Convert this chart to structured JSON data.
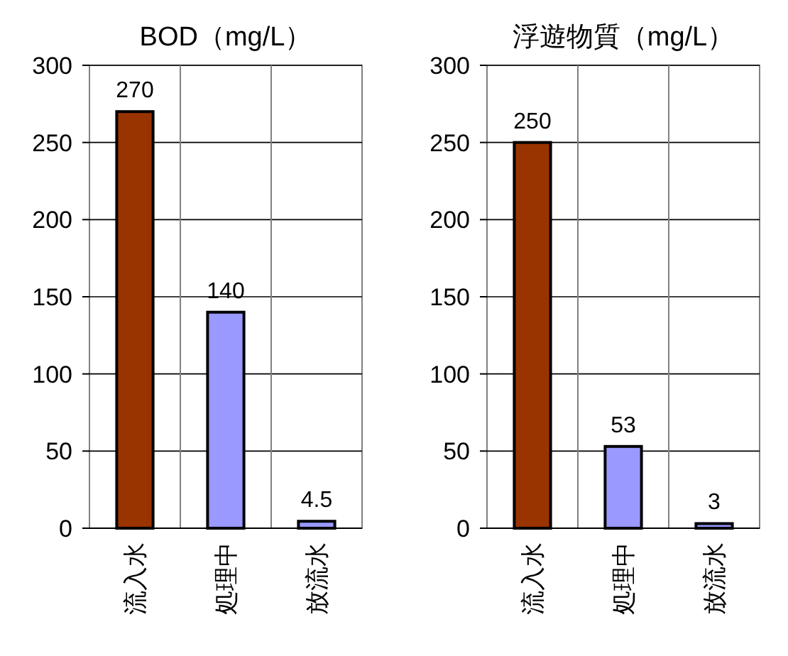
{
  "chart_data": [
    {
      "type": "bar",
      "title": "BOD（mg/L）",
      "categories": [
        "流入水",
        "処理中",
        "放流水"
      ],
      "values": [
        270,
        140,
        4.5
      ],
      "colors": [
        "#993300",
        "#9999ff",
        "#9999ff"
      ],
      "ylim": [
        0,
        300
      ],
      "yticks": [
        0,
        50,
        100,
        150,
        200,
        250,
        300
      ],
      "grid": true,
      "data_labels": true
    },
    {
      "type": "bar",
      "title": "浮遊物質（mg/L）",
      "categories": [
        "流入水",
        "処理中",
        "放流水"
      ],
      "values": [
        250,
        53,
        3
      ],
      "colors": [
        "#993300",
        "#9999ff",
        "#9999ff"
      ],
      "ylim": [
        0,
        300
      ],
      "yticks": [
        0,
        50,
        100,
        150,
        200,
        250,
        300
      ],
      "grid": true,
      "data_labels": true
    }
  ]
}
